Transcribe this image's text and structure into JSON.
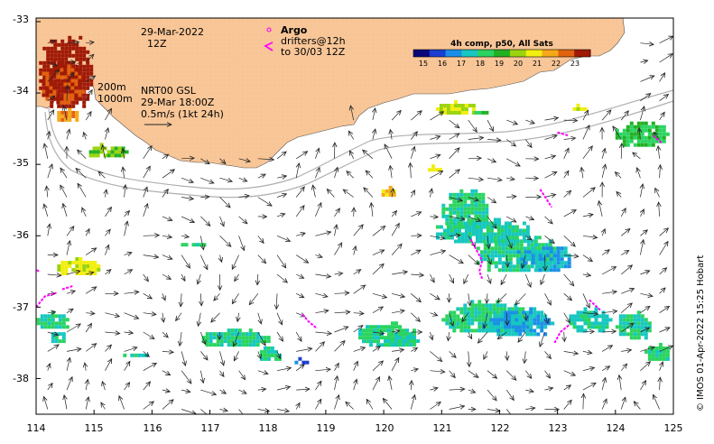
{
  "map": {
    "x_ticks": [
      "114",
      "115",
      "116",
      "117",
      "118",
      "119",
      "120",
      "121",
      "122",
      "123",
      "124",
      "125"
    ],
    "y_ticks": [
      "-33",
      "-34",
      "-35",
      "-36",
      "-37",
      "-38"
    ],
    "date_line1": "29-Mar-2022",
    "date_line2": "12Z",
    "contour_200": "200m",
    "contour_1000": "1000m",
    "gsl_line1": "NRT00 GSL",
    "gsl_line2": "29-Mar 18:00Z",
    "gsl_line3": "0.5m/s (1kt 24h)",
    "argo_label": "Argo",
    "drifters_line1": "drifters@12h",
    "drifters_line2": "to 30/03 12Z",
    "credit": "© IMOS 01-Apr-2022 15:25 Hobart",
    "colors": {
      "land": "#f8c596",
      "argo": "#ff00ff",
      "contour": "#b0b0b0",
      "arrow": "#222222"
    }
  },
  "colorbar": {
    "title": "4h comp, p50, All Sats",
    "labels": [
      "15",
      "16",
      "17",
      "18",
      "19",
      "20",
      "21",
      "22",
      "23"
    ],
    "colors": [
      "#08087a",
      "#1a3fd0",
      "#1b8fe8",
      "#17c7c0",
      "#2bd460",
      "#22b023",
      "#9ad40e",
      "#f2ee10",
      "#f6a81a",
      "#e2630f",
      "#a01a08"
    ]
  },
  "patches": [
    {
      "lon": 114.05,
      "lat": -33.2,
      "w": 0.9,
      "h": 1.0,
      "temp": 23.2
    },
    {
      "lon": 114.1,
      "lat": -33.55,
      "w": 0.7,
      "h": 0.6,
      "temp": 22.6
    },
    {
      "lon": 114.3,
      "lat": -34.2,
      "w": 0.4,
      "h": 0.2,
      "temp": 22.0
    },
    {
      "lon": 114.85,
      "lat": -34.7,
      "w": 0.7,
      "h": 0.2,
      "temp": 19.5
    },
    {
      "lon": 120.9,
      "lat": -34.1,
      "w": 0.7,
      "h": 0.2,
      "temp": 20.2
    },
    {
      "lon": 121.5,
      "lat": -34.2,
      "w": 0.3,
      "h": 0.1,
      "temp": 18.8
    },
    {
      "lon": 123.2,
      "lat": -34.15,
      "w": 0.3,
      "h": 0.1,
      "temp": 20.5
    },
    {
      "lon": 124.0,
      "lat": -34.4,
      "w": 0.9,
      "h": 0.35,
      "temp": 18.4
    },
    {
      "lon": 119.9,
      "lat": -35.3,
      "w": 0.3,
      "h": 0.15,
      "temp": 21.0
    },
    {
      "lon": 120.7,
      "lat": -35.0,
      "w": 0.3,
      "h": 0.1,
      "temp": 20.8
    },
    {
      "lon": 114.3,
      "lat": -36.3,
      "w": 0.8,
      "h": 0.25,
      "temp": 20.4
    },
    {
      "lon": 121.0,
      "lat": -35.35,
      "w": 0.8,
      "h": 0.55,
      "temp": 17.9
    },
    {
      "lon": 120.9,
      "lat": -35.75,
      "w": 1.6,
      "h": 0.35,
      "temp": 17.6
    },
    {
      "lon": 121.6,
      "lat": -36.0,
      "w": 1.4,
      "h": 0.5,
      "temp": 17.8
    },
    {
      "lon": 122.3,
      "lat": -36.1,
      "w": 0.9,
      "h": 0.4,
      "temp": 17.0
    },
    {
      "lon": 113.95,
      "lat": -37.05,
      "w": 0.6,
      "h": 0.25,
      "temp": 17.8
    },
    {
      "lon": 114.2,
      "lat": -37.3,
      "w": 0.3,
      "h": 0.2,
      "temp": 17.9
    },
    {
      "lon": 116.5,
      "lat": -36.05,
      "w": 0.4,
      "h": 0.1,
      "temp": 17.9
    },
    {
      "lon": 121.0,
      "lat": -36.9,
      "w": 1.5,
      "h": 0.45,
      "temp": 17.9
    },
    {
      "lon": 121.7,
      "lat": -37.0,
      "w": 1.2,
      "h": 0.4,
      "temp": 16.9
    },
    {
      "lon": 123.2,
      "lat": -37.0,
      "w": 0.7,
      "h": 0.35,
      "temp": 17.5
    },
    {
      "lon": 124.0,
      "lat": -37.05,
      "w": 0.6,
      "h": 0.4,
      "temp": 17.9
    },
    {
      "lon": 116.8,
      "lat": -37.3,
      "w": 1.2,
      "h": 0.25,
      "temp": 17.8
    },
    {
      "lon": 119.5,
      "lat": -37.2,
      "w": 1.0,
      "h": 0.35,
      "temp": 17.9
    },
    {
      "lon": 120.0,
      "lat": -37.35,
      "w": 0.6,
      "h": 0.2,
      "temp": 17.9
    },
    {
      "lon": 124.5,
      "lat": -37.5,
      "w": 0.4,
      "h": 0.25,
      "temp": 17.9
    },
    {
      "lon": 115.5,
      "lat": -37.6,
      "w": 0.4,
      "h": 0.1,
      "temp": 17.9
    },
    {
      "lon": 118.4,
      "lat": -37.7,
      "w": 0.3,
      "h": 0.1,
      "temp": 16.0
    },
    {
      "lon": 117.8,
      "lat": -37.55,
      "w": 0.4,
      "h": 0.2,
      "temp": 17.9
    }
  ],
  "argo_tracks": [
    {
      "points": [
        [
          113.95,
          -36.45
        ],
        [
          114.05,
          -36.5
        ]
      ]
    },
    {
      "points": [
        [
          114.0,
          -37.0
        ],
        [
          114.15,
          -36.85
        ],
        [
          114.35,
          -36.8
        ]
      ]
    },
    {
      "points": [
        [
          114.45,
          -36.75
        ],
        [
          114.65,
          -36.7
        ]
      ]
    },
    {
      "points": [
        [
          118.6,
          -37.1
        ],
        [
          118.7,
          -37.2
        ],
        [
          118.85,
          -37.3
        ]
      ]
    },
    {
      "points": [
        [
          121.5,
          -36.05
        ],
        [
          121.7,
          -36.35
        ],
        [
          121.65,
          -36.5
        ],
        [
          121.7,
          -36.6
        ]
      ]
    },
    {
      "points": [
        [
          122.7,
          -35.35
        ],
        [
          122.9,
          -35.6
        ]
      ]
    },
    {
      "points": [
        [
          122.95,
          -37.5
        ],
        [
          123.05,
          -37.35
        ],
        [
          123.2,
          -37.25
        ]
      ]
    },
    {
      "points": [
        [
          123.55,
          -36.9
        ],
        [
          123.75,
          -37.05
        ]
      ]
    },
    {
      "points": [
        [
          123.0,
          -34.55
        ],
        [
          123.2,
          -34.6
        ]
      ]
    },
    {
      "points": [
        [
          124.65,
          -34.6
        ],
        [
          124.8,
          -34.7
        ]
      ]
    }
  ]
}
